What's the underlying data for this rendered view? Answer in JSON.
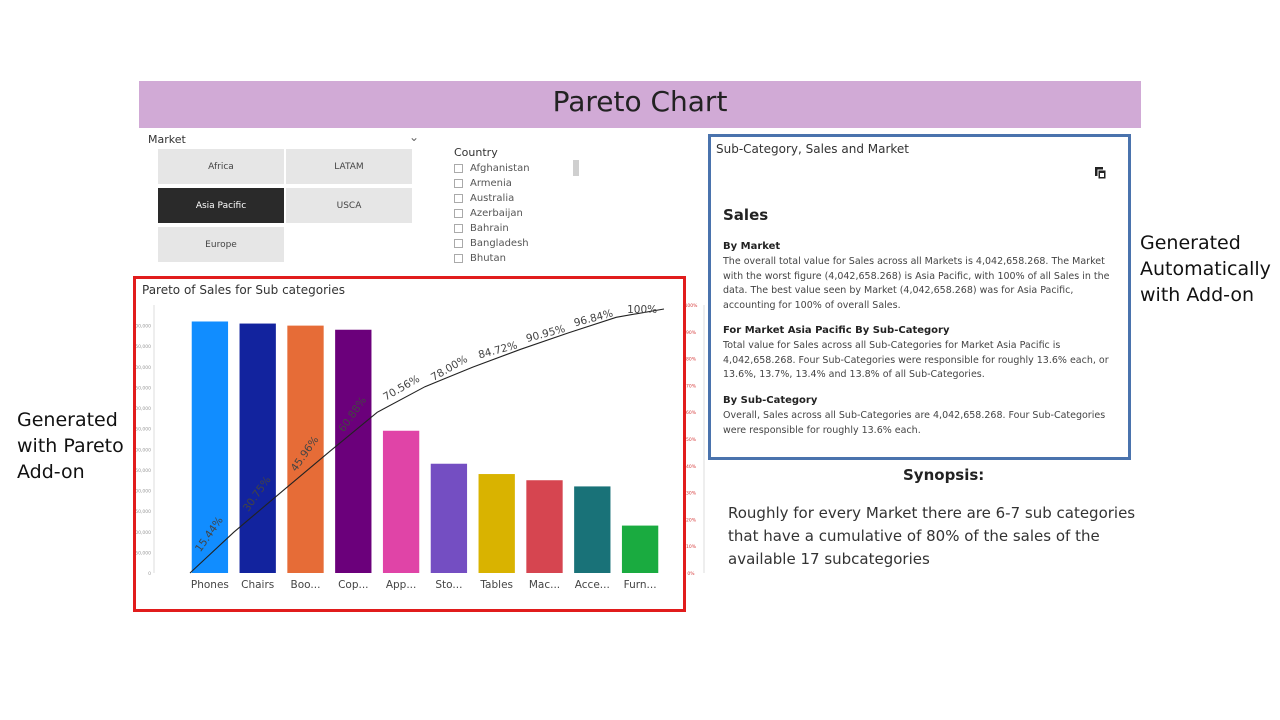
{
  "header": {
    "title": "Pareto Chart"
  },
  "market_slicer": {
    "label": "Market",
    "options": [
      "Africa",
      "LATAM",
      "Asia Pacific",
      "USCA",
      "Europe"
    ],
    "selected": "Asia Pacific"
  },
  "country_slicer": {
    "label": "Country",
    "items": [
      "Afghanistan",
      "Armenia",
      "Australia",
      "Azerbaijan",
      "Bahrain",
      "Bangladesh",
      "Bhutan"
    ]
  },
  "pareto": {
    "title": "Pareto of Sales for Sub categories"
  },
  "chart_data": {
    "type": "bar",
    "title": "Pareto of Sales for Sub categories",
    "categories": [
      "Phones",
      "Chairs",
      "Boo...",
      "Cop...",
      "App...",
      "Sto...",
      "Tables",
      "Mac...",
      "Acce...",
      "Furn..."
    ],
    "values": [
      610000,
      605000,
      600000,
      590000,
      345000,
      265000,
      240000,
      225000,
      210000,
      115000
    ],
    "colors": [
      "#118dff",
      "#12239e",
      "#e66c37",
      "#6b007b",
      "#e044a7",
      "#744ec2",
      "#d9b300",
      "#d64550",
      "#197278",
      "#1aab40"
    ],
    "ylim": [
      0,
      650000
    ],
    "y_ticks": [
      "0",
      "50,000",
      "100,000",
      "150,000",
      "200,000",
      "250,000",
      "300,000",
      "350,000",
      "400,000",
      "450,000",
      "500,000",
      "550,000",
      "600,000"
    ],
    "cumulative_labels": [
      "15.44%",
      "30.75%",
      "45.96%",
      "60.88%",
      "70.56%",
      "78.00%",
      "84.72%",
      "90.95%",
      "96.84%",
      "100%"
    ],
    "cumulative_values": [
      15.44,
      30.75,
      45.96,
      60.88,
      70.56,
      78.0,
      84.72,
      90.95,
      96.84,
      100
    ],
    "y2lim": [
      0,
      100
    ],
    "grid": false
  },
  "smart_narrative": {
    "title": "Sub-Category, Sales and Market",
    "heading": "Sales",
    "sections": [
      {
        "subheading": "By Market",
        "lines": [
          "The overall total value for Sales across all Markets is 4,042,658.268. The Market",
          "with the worst figure (4,042,658.268) is Asia Pacific, with 100% of all Sales in the",
          "data. The best value seen by Market (4,042,658.268) was for Asia Pacific,",
          "accounting for 100% of overall Sales."
        ]
      },
      {
        "subheading": "For Market Asia Pacific By Sub-Category",
        "lines": [
          "Total value for Sales across all Sub-Categories for Market Asia Pacific is",
          "4,042,658.268. Four Sub-Categories were responsible for roughly 13.6% each, or",
          "13.6%, 13.7%, 13.4% and 13.8% of all Sub-Categories."
        ]
      },
      {
        "subheading": "By Sub-Category",
        "lines": [
          "Overall, Sales across all Sub-Categories are 4,042,658.268. Four Sub-Categories",
          "were responsible for roughly 13.6% each."
        ]
      }
    ]
  },
  "annotations": {
    "right_note": [
      "Generated",
      "Automatically",
      "with Add-on"
    ],
    "left_note": [
      "Generated",
      "with Pareto",
      "Add-on"
    ],
    "synopsis_title": "Synopsis:",
    "synopsis_lines": [
      "Roughly for every Market there are 6-7 sub categories",
      "that have a cumulative of  80% of the sales of the",
      "available 17 subcategories"
    ]
  }
}
